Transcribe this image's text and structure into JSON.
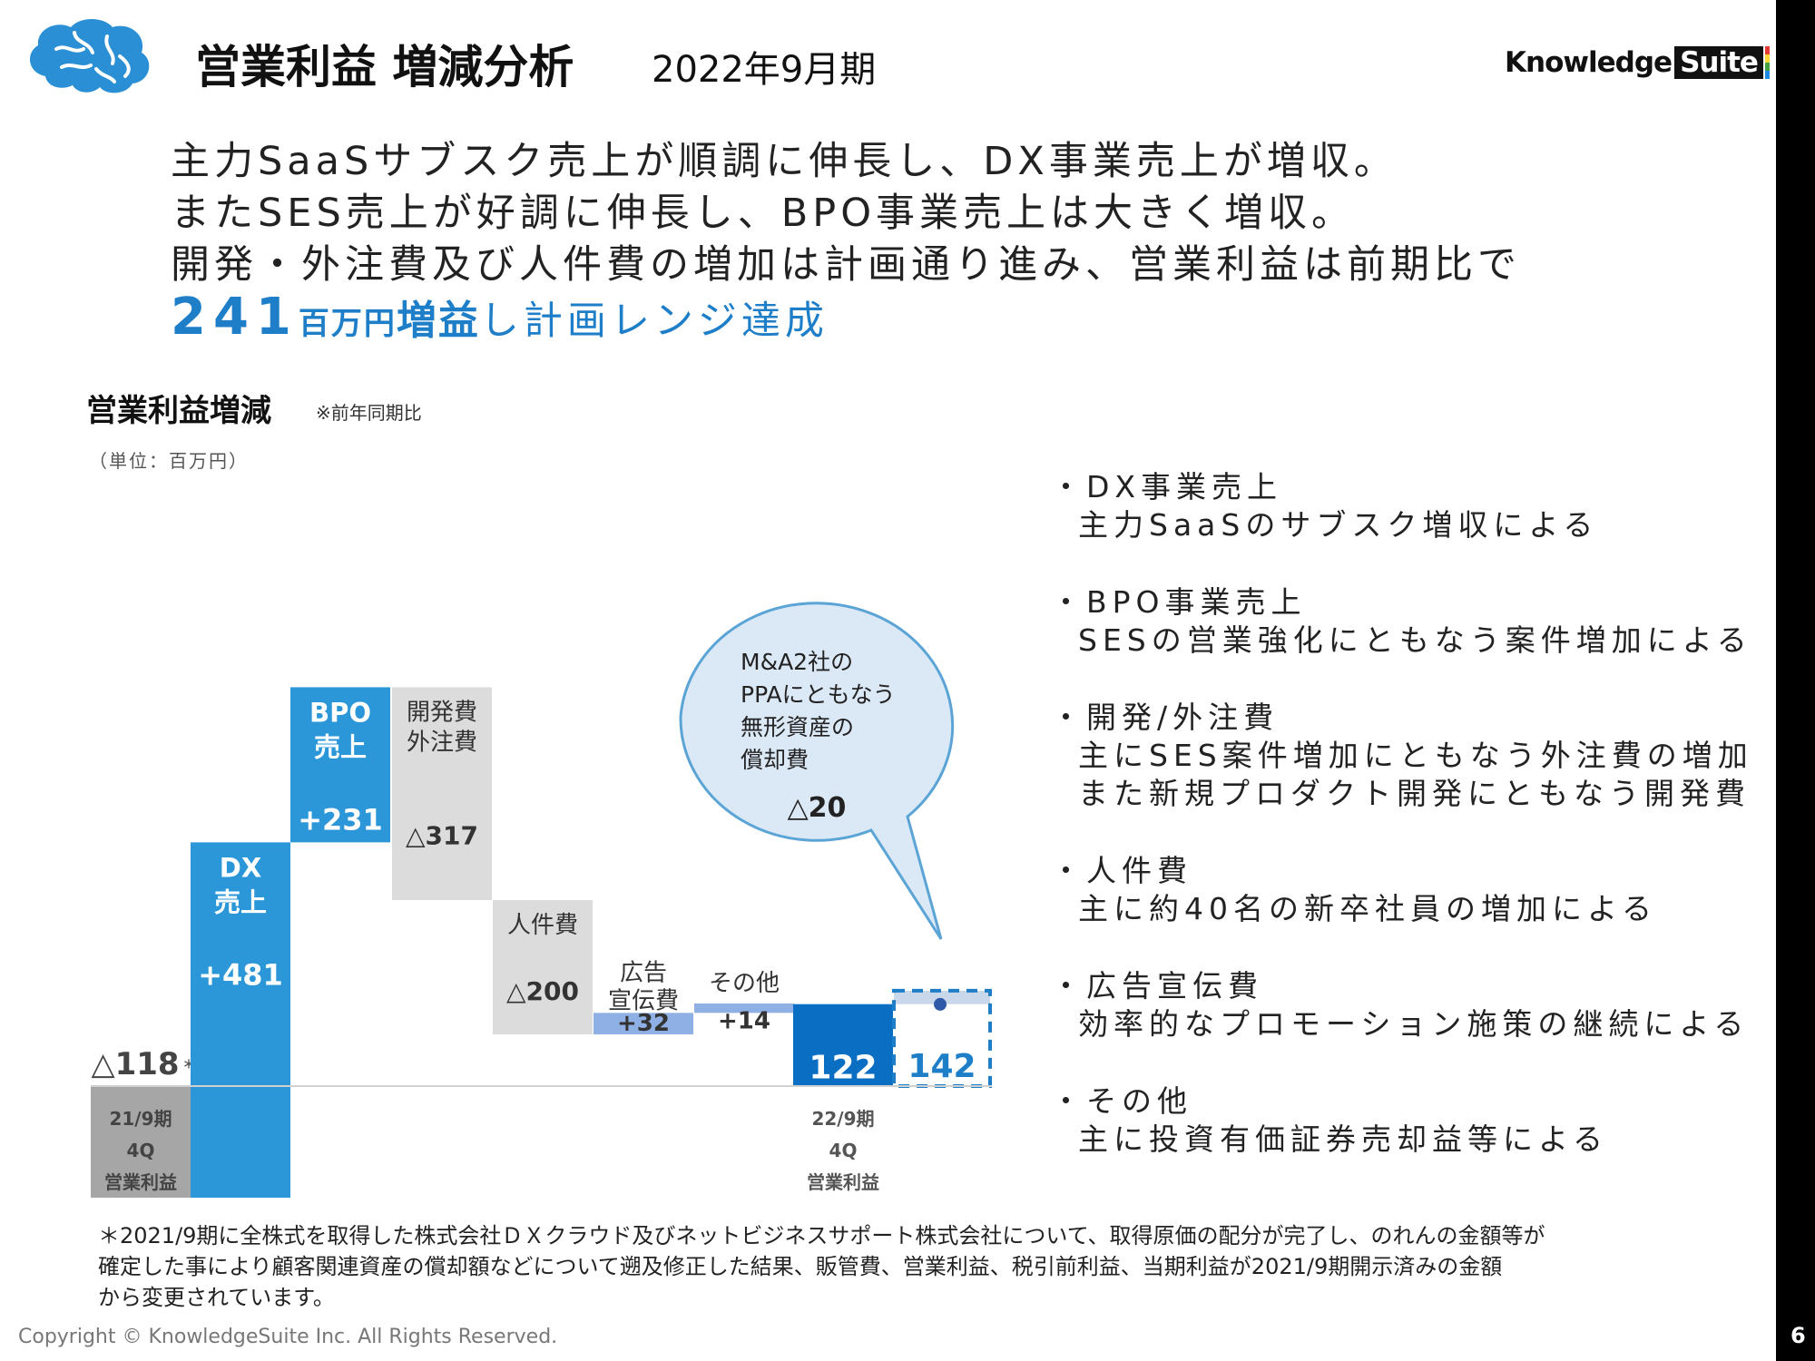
{
  "header": {
    "title": "営業利益 増減分析",
    "subtitle": "2022年9月期",
    "brand": {
      "word": "Knowledge",
      "suite": "Suite",
      "bar_colors": [
        "#e53935",
        "#fdd835",
        "#43a047",
        "#1e88e5"
      ]
    }
  },
  "headline": {
    "line1": "主力SaaSサブスク売上が順調に伸長し、DX事業売上が増収。",
    "line2": "またSES売上が好調に伸長し、BPO事業売上は大きく増収。",
    "line3": "開発・外注費及び人件費の増加は計画通り進み、営業利益は前期比で",
    "line4_num": "241",
    "line4_unit": "百万円",
    "line4_bold": "増益",
    "line4_rest": "し計画レンジ達成"
  },
  "section": {
    "title": "営業利益増減",
    "note": "※前年同期比",
    "unit": "（単位：百万円）"
  },
  "chart_data": {
    "type": "bar",
    "subtype": "waterfall",
    "unit": "百万円",
    "colors": {
      "increase": "#2b97d9",
      "decrease": "#dcdcdc",
      "small_increase": "#8fb0e4",
      "base_start": "#a6a6a6",
      "end": "#0a6fc2",
      "plan": "#1e7ec8"
    },
    "steps": [
      {
        "id": "start",
        "label": [
          "21/9期",
          "4Q",
          "営業利益"
        ],
        "value": -118,
        "value_label": "△118",
        "marker": "*",
        "kind": "total"
      },
      {
        "id": "dx",
        "label": [
          "DX",
          "売上"
        ],
        "value": 481,
        "value_label": "+481",
        "kind": "increase"
      },
      {
        "id": "bpo",
        "label": [
          "BPO",
          "売上"
        ],
        "value": 231,
        "value_label": "+231",
        "kind": "increase"
      },
      {
        "id": "dev",
        "label": [
          "開発費",
          "外注費"
        ],
        "value": -317,
        "value_label": "△317",
        "kind": "decrease"
      },
      {
        "id": "personnel",
        "label": [
          "人件費"
        ],
        "value": -200,
        "value_label": "△200",
        "kind": "decrease"
      },
      {
        "id": "ads",
        "label": [
          "広告",
          "宣伝費"
        ],
        "value": 32,
        "value_label": "+32",
        "kind": "small_increase"
      },
      {
        "id": "other",
        "label": [
          "その他"
        ],
        "value": 14,
        "value_label": "+14",
        "kind": "small_increase"
      },
      {
        "id": "end",
        "label": [
          "22/9期",
          "4Q",
          "営業利益"
        ],
        "value": 122,
        "value_label": "122",
        "kind": "total"
      },
      {
        "id": "excl",
        "label": [],
        "value": 142,
        "value_label": "142",
        "kind": "plan_total"
      }
    ],
    "callout": {
      "lines": [
        "M&A2社の",
        "PPAにともなう",
        "無形資産の",
        "償却費"
      ],
      "value": -20,
      "value_label": "△20"
    }
  },
  "bullets": [
    {
      "title": "・DX事業売上",
      "lines": [
        "主力SaaSのサブスク増収による"
      ]
    },
    {
      "title": "・BPO事業売上",
      "lines": [
        "SESの営業強化にともなう案件増加による"
      ]
    },
    {
      "title": "・開発/外注費",
      "lines": [
        "主にSES案件増加にともなう外注費の増加",
        "また新規プロダクト開発にともなう開発費"
      ]
    },
    {
      "title": "・人件費",
      "lines": [
        "主に約40名の新卒社員の増加による"
      ]
    },
    {
      "title": "・広告宣伝費",
      "lines": [
        "効率的なプロモーション施策の継続による"
      ]
    },
    {
      "title": "・その他",
      "lines": [
        "主に投資有価証券売却益等による"
      ]
    }
  ],
  "footnote": {
    "line1": "＊2021/9期に全株式を取得した株式会社ＤＸクラウド及びネットビジネスサポート株式会社について、取得原価の配分が完了し、のれんの金額等が",
    "line2": "確定した事により顧客関連資産の償却額などについて遡及修正した結果、販管費、営業利益、税引前利益、当期利益が2021/9期開示済みの金額",
    "line3": "から変更されています。"
  },
  "footer": {
    "copyright": "Copyright © KnowledgeSuite Inc. All Rights Reserved.",
    "page": "6"
  }
}
